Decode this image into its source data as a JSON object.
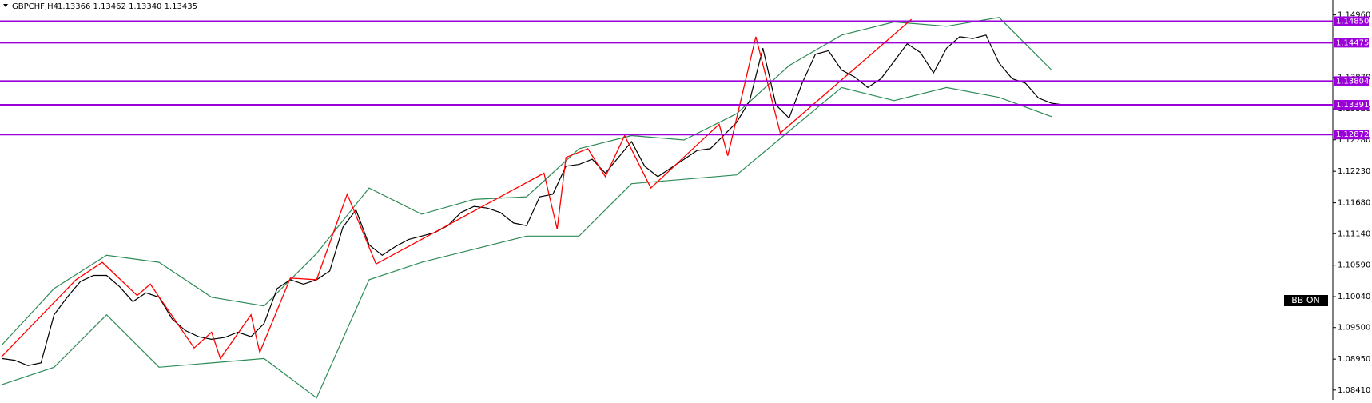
{
  "chart_data": {
    "type": "price",
    "title": "GBPCHF,H4",
    "quote": "1.13366 1.13462 1.13340 1.13435",
    "indicator_label": "BB ON",
    "ylim": [
      1.0824,
      1.1522
    ],
    "yticks": [
      {
        "value": 1.1496,
        "label": "1.14960"
      },
      {
        "value": 1.1387,
        "label": "1.13870"
      },
      {
        "value": 1.1332,
        "label": "1.13320"
      },
      {
        "value": 1.1278,
        "label": "1.12780"
      },
      {
        "value": 1.1223,
        "label": "1.12230"
      },
      {
        "value": 1.1168,
        "label": "1.11680"
      },
      {
        "value": 1.1114,
        "label": "1.11140"
      },
      {
        "value": 1.1059,
        "label": "1.10590"
      },
      {
        "value": 1.1004,
        "label": "1.10040"
      },
      {
        "value": 1.095,
        "label": "1.09500"
      },
      {
        "value": 1.0895,
        "label": "1.08950"
      },
      {
        "value": 1.0841,
        "label": "1.08410"
      }
    ],
    "levels": [
      {
        "value": 1.1485,
        "label": "1.14850"
      },
      {
        "value": 1.14475,
        "label": "1.14475"
      },
      {
        "value": 1.13804,
        "label": "1.13804"
      },
      {
        "value": 1.13391,
        "label": "1.13391"
      },
      {
        "value": 1.12872,
        "label": "1.12872"
      }
    ],
    "level_color": "#9b00d9",
    "close": {
      "color": "#000000",
      "values": [
        1.08961,
        1.0893,
        1.08838,
        1.08884,
        1.09724,
        1.10029,
        1.10304,
        1.10411,
        1.10411,
        1.10212,
        1.09953,
        1.10106,
        1.10029,
        1.09648,
        1.09449,
        1.09342,
        1.09296,
        1.09327,
        1.09419,
        1.09342,
        1.09571,
        1.10182,
        1.10335,
        1.10258,
        1.10335,
        1.10487,
        1.11251,
        1.11556,
        1.10945,
        1.10762,
        1.10915,
        1.11037,
        1.11098,
        1.11159,
        1.11281,
        1.1151,
        1.11617,
        1.11587,
        1.1151,
        1.11327,
        1.11281,
        1.11785,
        1.11831,
        1.12319,
        1.1235,
        1.12441,
        1.12197,
        1.12472,
        1.12747,
        1.12319,
        1.12136,
        1.12289,
        1.12441,
        1.12594,
        1.12625,
        1.12854,
        1.13083,
        1.13464,
        1.1438,
        1.13388,
        1.13159,
        1.1377,
        1.14273,
        1.14335,
        1.13999,
        1.13877,
        1.13693,
        1.13846,
        1.14151,
        1.14457,
        1.14304,
        1.13948,
        1.1438,
        1.14579,
        1.14548,
        1.14609,
        1.14121,
        1.13846,
        1.1377,
        1.1351,
        1.13418,
        1.13388
      ]
    },
    "bands": {
      "color": "#2e8b57",
      "x": [
        0,
        4,
        8,
        12,
        16,
        20,
        24,
        28,
        32,
        36,
        40,
        44,
        48,
        52,
        56,
        60,
        64,
        68,
        72,
        76,
        80
      ],
      "upper": [
        1.0919,
        1.10182,
        1.10762,
        1.1064,
        1.10029,
        1.09877,
        1.10793,
        1.11938,
        1.1148,
        1.11739,
        1.11785,
        1.12625,
        1.12854,
        1.12777,
        1.13235,
        1.14075,
        1.14609,
        1.14838,
        1.14762,
        1.14915,
        1.13999
      ],
      "lower": [
        1.08503,
        1.08808,
        1.09724,
        1.08808,
        1.08884,
        1.08961,
        1.08274,
        1.10335,
        1.1064,
        1.10869,
        1.11098,
        1.11098,
        1.12014,
        1.1209,
        1.12167,
        1.1293,
        1.13693,
        1.13464,
        1.13693,
        1.13521,
        1.13185
      ]
    },
    "zigzag": {
      "color": "#ff0000",
      "x": [
        0,
        5.67,
        7.67,
        10.33,
        11.33,
        14.67,
        16,
        16.67,
        19,
        19.67,
        22,
        24,
        26.33,
        28.53,
        41.33,
        42.33,
        43,
        44.67,
        46,
        47.47,
        49.47,
        54.67,
        55.33,
        57.47,
        59.33,
        69.33
      ],
      "values": [
        1.08991,
        1.10335,
        1.1064,
        1.1006,
        1.10258,
        1.09144,
        1.09419,
        1.08961,
        1.09724,
        1.09067,
        1.10365,
        1.10335,
        1.11831,
        1.1061,
        1.12197,
        1.1122,
        1.12472,
        1.12625,
        1.12136,
        1.12854,
        1.11938,
        1.13052,
        1.12502,
        1.14579,
        1.12899,
        1.14884
      ]
    }
  }
}
